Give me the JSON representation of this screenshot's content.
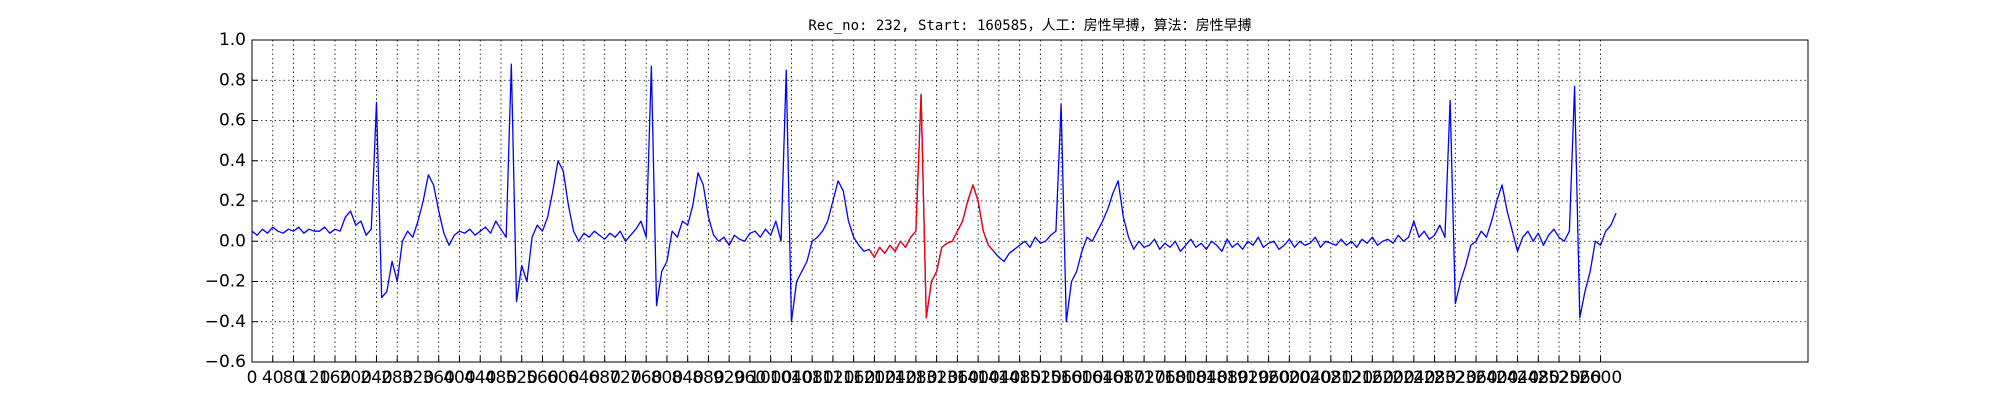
{
  "chart_data": {
    "type": "line",
    "title": "Rec_no: 232, Start: 160585，人工：房性早搏，算法：房性早搏",
    "xlim": [
      0,
      3000
    ],
    "ylim": [
      -0.6,
      1.0
    ],
    "xticks": [
      0,
      40,
      80,
      120,
      160,
      200,
      240,
      280,
      320,
      360,
      400,
      440,
      480,
      520,
      560,
      600,
      640,
      680,
      720,
      760,
      800,
      840,
      880,
      920,
      960,
      1000,
      1040,
      1080,
      1120,
      1160,
      1200,
      1240,
      1280,
      1320,
      1360,
      1400,
      1440,
      1480,
      1520,
      1560,
      1600,
      1640,
      1680,
      1720,
      1760,
      1800,
      1840,
      1880,
      1920,
      1960,
      2000,
      2040,
      2080,
      2120,
      2160,
      2200,
      2240,
      2280,
      2320,
      2360,
      2400,
      2440,
      2480,
      2520,
      2560,
      2600
    ],
    "yticks": [
      {
        "value": -0.6,
        "label": "−0.6"
      },
      {
        "value": -0.4,
        "label": "−0.4"
      },
      {
        "value": -0.2,
        "label": "−0.2"
      },
      {
        "value": 0,
        "label": "0.0"
      },
      0.2,
      0.4,
      0.6,
      0.8,
      {
        "value": 1,
        "label": "1.0"
      }
    ],
    "grid": true,
    "series": [
      {
        "color": "#0000ff",
        "x": [
          0,
          10,
          20,
          30,
          40,
          50,
          60,
          70,
          80,
          90,
          100,
          110,
          120,
          130,
          140,
          150,
          160,
          170,
          180,
          190,
          200,
          210,
          220,
          230,
          240,
          250,
          260,
          270,
          280,
          290,
          300,
          310,
          320,
          330,
          340,
          350,
          360,
          370,
          380,
          390,
          400,
          410,
          420,
          430,
          440,
          450,
          460,
          470,
          480,
          490,
          500,
          510,
          520,
          530,
          540,
          550,
          560,
          570,
          580,
          590,
          600,
          610,
          620,
          630,
          640,
          650,
          660,
          670,
          680,
          690,
          700,
          710,
          720,
          730,
          740,
          750,
          760,
          770,
          780,
          790,
          800,
          810,
          820,
          830,
          840,
          850,
          860,
          870,
          880,
          890,
          900,
          910,
          920,
          930,
          940,
          950,
          960,
          970,
          980,
          990,
          1000,
          1010,
          1020,
          1030,
          1040,
          1050,
          1060,
          1070,
          1080,
          1090,
          1100,
          1110,
          1120,
          1130,
          1140,
          1150,
          1160,
          1170,
          1180,
          1190,
          1200,
          1210,
          1220,
          1230,
          1240,
          1250,
          1260,
          1270,
          1280,
          1290,
          1300,
          1310,
          1320,
          1330,
          1340,
          1350,
          1360,
          1370,
          1380,
          1390,
          1400,
          1410,
          1420,
          1430,
          1440,
          1450,
          1460,
          1470,
          1480,
          1490,
          1500,
          1510,
          1520,
          1530,
          1540,
          1550,
          1560,
          1570,
          1580,
          1590,
          1600,
          1610,
          1620,
          1630,
          1640,
          1650,
          1660,
          1670,
          1680,
          1690,
          1700,
          1710,
          1720,
          1730,
          1740,
          1750,
          1760,
          1770,
          1780,
          1790,
          1800,
          1810,
          1820,
          1830,
          1840,
          1850,
          1860,
          1870,
          1880,
          1890,
          1900,
          1910,
          1920,
          1930,
          1940,
          1950,
          1960,
          1970,
          1980,
          1990,
          2000,
          2010,
          2020,
          2030,
          2040,
          2050,
          2060,
          2070,
          2080,
          2090,
          2100,
          2110,
          2120,
          2130,
          2140,
          2150,
          2160,
          2170,
          2180,
          2190,
          2200,
          2210,
          2220,
          2230,
          2240,
          2250,
          2260,
          2270,
          2280,
          2290,
          2300,
          2310,
          2320,
          2330,
          2340,
          2350,
          2360,
          2370,
          2380,
          2390,
          2400,
          2410,
          2420,
          2430,
          2440,
          2450,
          2460,
          2470,
          2480,
          2490,
          2500,
          2510,
          2520,
          2530,
          2540,
          2550,
          2560,
          2570,
          2580,
          2590,
          2600,
          2610,
          2620,
          2630
        ],
        "values": [
          0.05,
          0.03,
          0.06,
          0.04,
          0.07,
          0.05,
          0.04,
          0.06,
          0.05,
          0.07,
          0.04,
          0.06,
          0.05,
          0.05,
          0.07,
          0.04,
          0.06,
          0.05,
          0.12,
          0.15,
          0.08,
          0.1,
          0.03,
          0.06,
          0.69,
          -0.28,
          -0.25,
          -0.1,
          -0.2,
          0.0,
          0.05,
          0.02,
          0.1,
          0.2,
          0.33,
          0.28,
          0.15,
          0.04,
          -0.02,
          0.03,
          0.05,
          0.04,
          0.06,
          0.03,
          0.05,
          0.07,
          0.04,
          0.1,
          0.06,
          0.02,
          0.88,
          -0.3,
          -0.12,
          -0.2,
          0.02,
          0.08,
          0.05,
          0.12,
          0.25,
          0.4,
          0.35,
          0.18,
          0.05,
          0.0,
          0.04,
          0.02,
          0.05,
          0.03,
          0.01,
          0.04,
          0.02,
          0.05,
          0.0,
          0.03,
          0.06,
          0.1,
          0.02,
          0.87,
          -0.32,
          -0.15,
          -0.1,
          0.05,
          0.02,
          0.1,
          0.08,
          0.18,
          0.34,
          0.28,
          0.12,
          0.03,
          0.0,
          0.02,
          -0.02,
          0.03,
          0.01,
          0.0,
          0.04,
          0.05,
          0.02,
          0.06,
          0.03,
          0.1,
          0.0,
          0.85,
          -0.4,
          -0.2,
          -0.15,
          -0.1,
          0.0,
          0.02,
          0.05,
          0.1,
          0.2,
          0.3,
          0.25,
          0.1,
          0.02,
          -0.02,
          -0.05,
          -0.04,
          -0.08,
          -0.03,
          -0.06,
          -0.02,
          -0.05,
          0.0,
          -0.03,
          0.02,
          0.05,
          0.73,
          -0.38,
          -0.2,
          -0.15,
          -0.03,
          -0.01,
          0.0,
          0.05,
          0.1,
          0.2,
          0.28,
          0.2,
          0.05,
          -0.02,
          -0.05,
          -0.08,
          -0.1,
          -0.06,
          -0.04,
          -0.02,
          0.0,
          -0.03,
          0.02,
          -0.01,
          0.0,
          0.03,
          0.05,
          0.68,
          -0.4,
          -0.2,
          -0.15,
          -0.05,
          0.02,
          0.0,
          0.05,
          0.1,
          0.16,
          0.24,
          0.3,
          0.12,
          0.02,
          -0.04,
          0.0,
          -0.03,
          -0.02,
          0.01,
          -0.04,
          -0.01,
          -0.03,
          0.0,
          -0.05,
          -0.02,
          0.01,
          -0.03,
          -0.01,
          -0.04,
          0.0,
          -0.02,
          -0.05,
          0.01,
          -0.03,
          -0.01,
          -0.04,
          0.0,
          -0.02,
          0.02,
          -0.03,
          -0.01,
          0.0,
          -0.04,
          -0.02,
          0.01,
          -0.03,
          0.0,
          -0.02,
          -0.01,
          0.02,
          -0.03,
          0.0,
          -0.01,
          -0.02,
          0.01,
          -0.02,
          0.0,
          -0.03,
          0.01,
          -0.01,
          0.02,
          -0.02,
          0.0,
          0.01,
          -0.01,
          0.03,
          0.0,
          0.02,
          0.1,
          0.02,
          0.05,
          0.01,
          0.03,
          0.08,
          0.02,
          0.7,
          -0.31,
          -0.2,
          -0.12,
          -0.02,
          0.0,
          0.05,
          0.02,
          0.1,
          0.2,
          0.28,
          0.15,
          0.05,
          -0.05,
          0.02,
          0.05,
          0.0,
          0.04,
          -0.02,
          0.03,
          0.06,
          0.02,
          0.0,
          0.05,
          0.77,
          -0.38,
          -0.25,
          -0.15,
          0.0,
          -0.02,
          0.05,
          0.08,
          0.14
        ]
      },
      {
        "color": "#ff0000",
        "x": [
          1190,
          1200,
          1210,
          1220,
          1230,
          1240,
          1250,
          1260,
          1270,
          1280,
          1290,
          1300,
          1310,
          1320,
          1330,
          1340,
          1350,
          1360,
          1370,
          1380,
          1390,
          1400,
          1410,
          1420,
          1430
        ],
        "values": [
          -0.04,
          -0.08,
          -0.03,
          -0.06,
          -0.02,
          -0.05,
          0.0,
          -0.03,
          0.02,
          0.05,
          0.73,
          -0.38,
          -0.2,
          -0.15,
          -0.03,
          -0.01,
          0.0,
          0.05,
          0.1,
          0.2,
          0.28,
          0.2,
          0.05,
          -0.02,
          -0.05
        ]
      }
    ]
  }
}
